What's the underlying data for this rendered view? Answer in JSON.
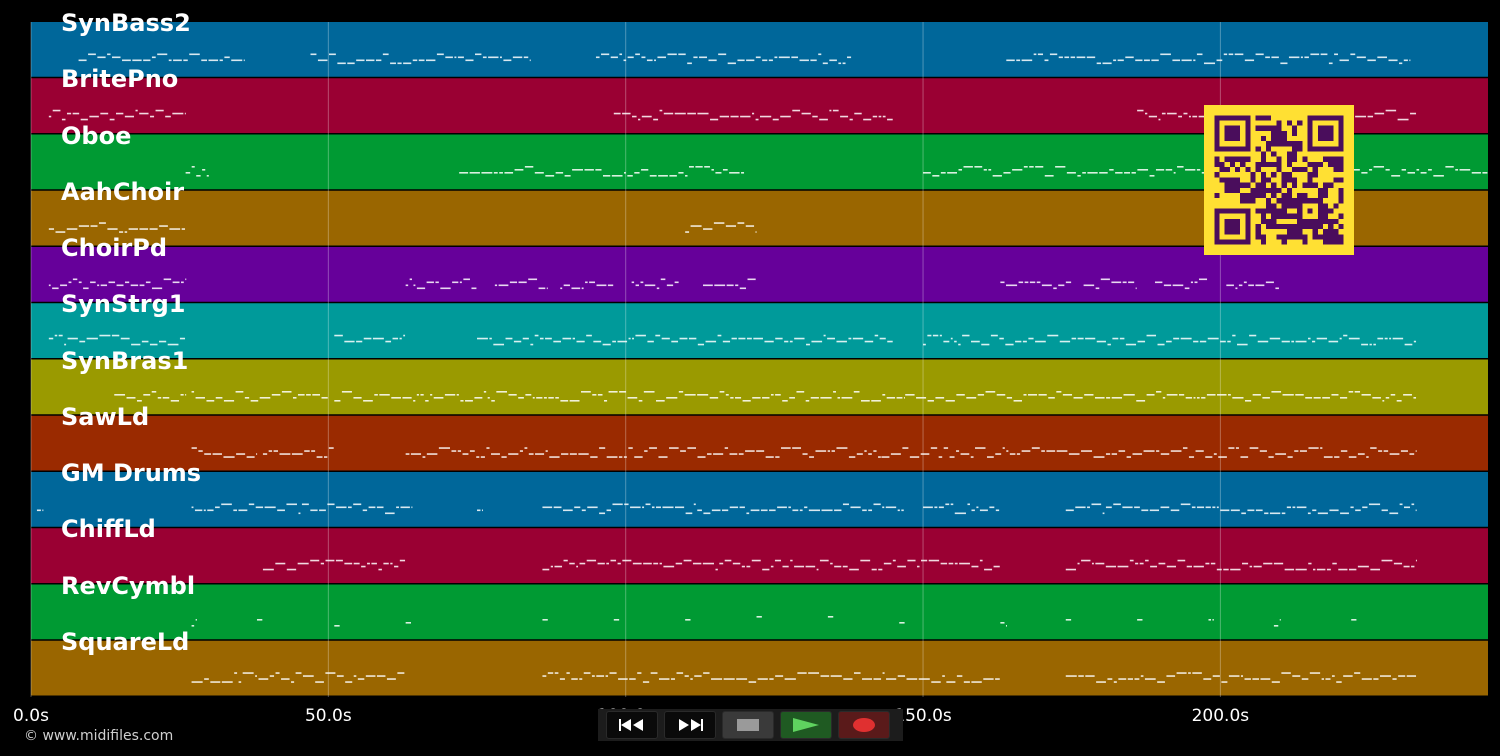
{
  "tracks": [
    {
      "name": "SynBass2",
      "color": "#00679a"
    },
    {
      "name": "BritePno",
      "color": "#9a0033"
    },
    {
      "name": "Oboe",
      "color": "#009a33"
    },
    {
      "name": "AahChoir",
      "color": "#9a6600"
    },
    {
      "name": "ChoirPd",
      "color": "#66009a"
    },
    {
      "name": "SynStrg1",
      "color": "#009a9a"
    },
    {
      "name": "SynBras1",
      "color": "#9a9a00"
    },
    {
      "name": "SawLd",
      "color": "#9a2a00"
    },
    {
      "name": "GM Drums",
      "color": "#00679a"
    },
    {
      "name": "ChiffLd",
      "color": "#9a0033"
    },
    {
      "name": "RevCymbl",
      "color": "#009a33"
    },
    {
      "name": "SquareLd",
      "color": "#9a6600"
    }
  ],
  "time_axis": {
    "ticks": [
      "0.0s",
      "50.0s",
      "100.0s",
      "150.0s",
      "200.0s"
    ],
    "tick_values": [
      0,
      50,
      100,
      150,
      200
    ],
    "max_seconds": 245
  },
  "copyright": "© www.midifiles.com",
  "transport": {
    "rewind_icon": "rewind-icon",
    "fast_forward_icon": "fast-forward-icon",
    "stop_icon": "stop-icon",
    "play_icon": "play-icon",
    "record_icon": "record-icon",
    "play_color": "#5fd35f",
    "record_color": "#e03030"
  },
  "qr": {
    "fg": "#4a0d5c",
    "bg": "#ffe033"
  }
}
